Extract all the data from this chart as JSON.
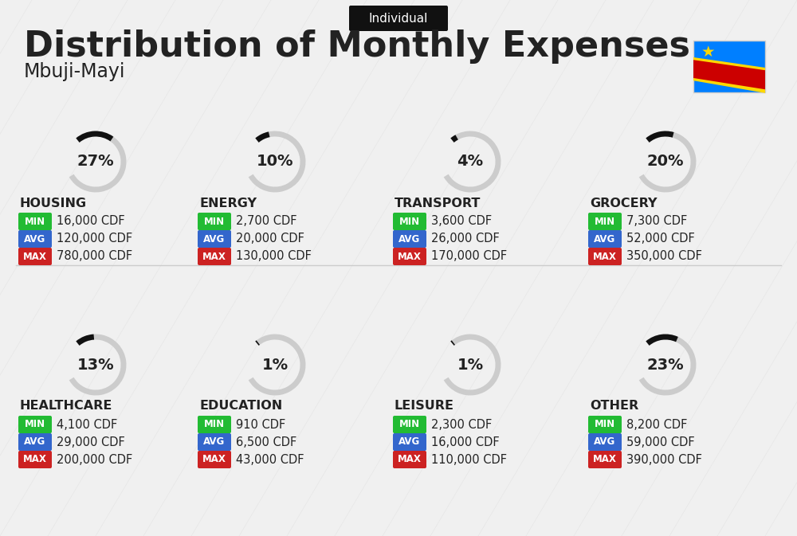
{
  "title": "Distribution of Monthly Expenses",
  "subtitle": "Mbuji-Mayi",
  "badge": "Individual",
  "bg_color": "#f0f0f0",
  "categories": [
    {
      "name": "HOUSING",
      "pct": 27,
      "min": "16,000 CDF",
      "avg": "120,000 CDF",
      "max": "780,000 CDF",
      "icon_color": "#2255aa"
    },
    {
      "name": "ENERGY",
      "pct": 10,
      "min": "2,700 CDF",
      "avg": "20,000 CDF",
      "max": "130,000 CDF",
      "icon_color": "#f5a623"
    },
    {
      "name": "TRANSPORT",
      "pct": 4,
      "min": "3,600 CDF",
      "avg": "26,000 CDF",
      "max": "170,000 CDF",
      "icon_color": "#2abcb0"
    },
    {
      "name": "GROCERY",
      "pct": 20,
      "min": "7,300 CDF",
      "avg": "52,000 CDF",
      "max": "350,000 CDF",
      "icon_color": "#e8a84c"
    },
    {
      "name": "HEALTHCARE",
      "pct": 13,
      "min": "4,100 CDF",
      "avg": "29,000 CDF",
      "max": "200,000 CDF",
      "icon_color": "#e05c7a"
    },
    {
      "name": "EDUCATION",
      "pct": 1,
      "min": "910 CDF",
      "avg": "6,500 CDF",
      "max": "43,000 CDF",
      "icon_color": "#2abcb0"
    },
    {
      "name": "LEISURE",
      "pct": 1,
      "min": "2,300 CDF",
      "avg": "16,000 CDF",
      "max": "110,000 CDF",
      "icon_color": "#e05c7a"
    },
    {
      "name": "OTHER",
      "pct": 23,
      "min": "8,200 CDF",
      "avg": "59,000 CDF",
      "max": "390,000 CDF",
      "icon_color": "#c8a456"
    }
  ],
  "min_color": "#22bb33",
  "avg_color": "#3366cc",
  "max_color": "#cc2222",
  "label_color": "#ffffff",
  "text_color": "#222222",
  "arc_color_filled": "#111111",
  "arc_color_empty": "#cccccc"
}
